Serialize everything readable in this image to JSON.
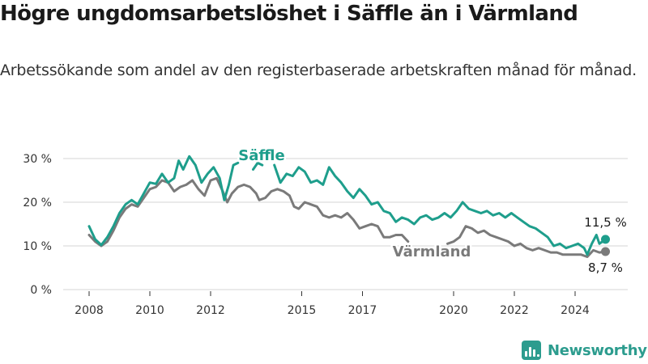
{
  "title": "Högre ungdomsarbetslöshet i Säffle än i Värmland",
  "subtitle": "Arbetssökande som andel av den registerbaserade arbetskraften månad för månad.",
  "brand": {
    "name": "Newsworthy"
  },
  "colors": {
    "saffle": "#1e9e8c",
    "varmland": "#7a7a7a",
    "grid": "#d4d4d4",
    "text": "#333333"
  },
  "chart_data": {
    "type": "line",
    "ylim": [
      0,
      30
    ],
    "y_ticks": [
      0,
      10,
      20,
      30
    ],
    "y_tick_labels": [
      "0 %",
      "10 %",
      "20 %",
      "30 %"
    ],
    "x_ticks": [
      2008,
      2010,
      2012,
      2015,
      2017,
      2020,
      2022,
      2024
    ],
    "x_tick_labels": [
      "2008",
      "2010",
      "2012",
      "2015",
      "2017",
      "2020",
      "2022",
      "2024"
    ],
    "grid": true,
    "series": [
      {
        "name": "Säffle",
        "end_label": "11,5 %",
        "points": [
          [
            2008.0,
            14.5
          ],
          [
            2008.2,
            11.5
          ],
          [
            2008.4,
            10.2
          ],
          [
            2008.6,
            12.0
          ],
          [
            2008.8,
            14.5
          ],
          [
            2009.0,
            17.5
          ],
          [
            2009.2,
            19.5
          ],
          [
            2009.4,
            20.5
          ],
          [
            2009.6,
            19.5
          ],
          [
            2009.8,
            22.0
          ],
          [
            2010.0,
            24.5
          ],
          [
            2010.2,
            24.2
          ],
          [
            2010.4,
            26.5
          ],
          [
            2010.6,
            24.5
          ],
          [
            2010.8,
            25.5
          ],
          [
            2010.95,
            29.5
          ],
          [
            2011.1,
            27.5
          ],
          [
            2011.3,
            30.5
          ],
          [
            2011.5,
            28.5
          ],
          [
            2011.7,
            24.5
          ],
          [
            2011.9,
            26.5
          ],
          [
            2012.1,
            28.0
          ],
          [
            2012.3,
            25.5
          ],
          [
            2012.45,
            20.5
          ],
          [
            2012.6,
            24.0
          ],
          [
            2012.75,
            28.5
          ],
          [
            2012.9,
            29.0
          ],
          [
            null,
            null
          ],
          [
            2013.4,
            27.5
          ],
          [
            2013.55,
            29.0
          ],
          [
            2013.7,
            28.5
          ],
          [
            null,
            null
          ],
          [
            2014.1,
            28.5
          ],
          [
            2014.3,
            24.5
          ],
          [
            2014.5,
            26.5
          ],
          [
            2014.7,
            26.0
          ],
          [
            2014.9,
            28.0
          ],
          [
            2015.1,
            27.0
          ],
          [
            2015.3,
            24.5
          ],
          [
            2015.5,
            25.0
          ],
          [
            2015.7,
            24.0
          ],
          [
            2015.9,
            28.0
          ],
          [
            2016.1,
            26.0
          ],
          [
            2016.3,
            24.5
          ],
          [
            2016.5,
            22.5
          ],
          [
            2016.7,
            21.0
          ],
          [
            2016.9,
            23.0
          ],
          [
            2017.1,
            21.5
          ],
          [
            2017.3,
            19.5
          ],
          [
            2017.5,
            20.0
          ],
          [
            2017.7,
            18.0
          ],
          [
            2017.9,
            17.5
          ],
          [
            2018.1,
            15.5
          ],
          [
            2018.3,
            16.5
          ],
          [
            2018.5,
            16.0
          ],
          [
            2018.7,
            15.0
          ],
          [
            2018.9,
            16.5
          ],
          [
            2019.1,
            17.0
          ],
          [
            2019.3,
            16.0
          ],
          [
            2019.5,
            16.5
          ],
          [
            2019.7,
            17.5
          ],
          [
            2019.9,
            16.5
          ],
          [
            2020.1,
            18.0
          ],
          [
            2020.3,
            20.0
          ],
          [
            2020.5,
            18.5
          ],
          [
            2020.7,
            18.0
          ],
          [
            2020.9,
            17.5
          ],
          [
            2021.1,
            18.0
          ],
          [
            2021.3,
            17.0
          ],
          [
            2021.5,
            17.5
          ],
          [
            2021.7,
            16.5
          ],
          [
            2021.9,
            17.5
          ],
          [
            2022.1,
            16.5
          ],
          [
            2022.3,
            15.5
          ],
          [
            2022.5,
            14.5
          ],
          [
            2022.7,
            14.0
          ],
          [
            2022.9,
            13.0
          ],
          [
            2023.1,
            12.0
          ],
          [
            2023.3,
            10.0
          ],
          [
            2023.5,
            10.5
          ],
          [
            2023.7,
            9.5
          ],
          [
            2023.9,
            10.0
          ],
          [
            2024.1,
            10.5
          ],
          [
            2024.3,
            9.5
          ],
          [
            2024.4,
            8.0
          ],
          [
            2024.55,
            10.5
          ],
          [
            2024.7,
            12.5
          ],
          [
            2024.8,
            10.5
          ],
          [
            2024.9,
            11.0
          ],
          [
            2025.0,
            11.5
          ]
        ]
      },
      {
        "name": "Värmland",
        "end_label": "8,7 %",
        "points": [
          [
            2008.0,
            12.5
          ],
          [
            2008.2,
            11.0
          ],
          [
            2008.4,
            10.0
          ],
          [
            2008.6,
            11.0
          ],
          [
            2008.8,
            13.5
          ],
          [
            2009.0,
            16.5
          ],
          [
            2009.2,
            18.5
          ],
          [
            2009.4,
            19.5
          ],
          [
            2009.6,
            19.0
          ],
          [
            2009.8,
            21.0
          ],
          [
            2010.0,
            23.0
          ],
          [
            2010.2,
            23.5
          ],
          [
            2010.4,
            25.0
          ],
          [
            2010.6,
            24.5
          ],
          [
            2010.8,
            22.5
          ],
          [
            2011.0,
            23.5
          ],
          [
            2011.2,
            24.0
          ],
          [
            2011.4,
            25.0
          ],
          [
            2011.6,
            23.0
          ],
          [
            2011.8,
            21.5
          ],
          [
            2012.0,
            25.0
          ],
          [
            2012.2,
            25.5
          ],
          [
            2012.4,
            22.5
          ],
          [
            2012.55,
            20.0
          ],
          [
            2012.7,
            22.0
          ],
          [
            2012.9,
            23.5
          ],
          [
            2013.1,
            24.0
          ],
          [
            2013.3,
            23.5
          ],
          [
            2013.5,
            22.0
          ],
          [
            2013.6,
            20.5
          ],
          [
            2013.8,
            21.0
          ],
          [
            2014.0,
            22.5
          ],
          [
            2014.2,
            23.0
          ],
          [
            2014.4,
            22.5
          ],
          [
            2014.6,
            21.5
          ],
          [
            2014.75,
            19.0
          ],
          [
            2014.9,
            18.5
          ],
          [
            2015.1,
            20.0
          ],
          [
            2015.3,
            19.5
          ],
          [
            2015.5,
            19.0
          ],
          [
            2015.7,
            17.0
          ],
          [
            2015.9,
            16.5
          ],
          [
            2016.1,
            17.0
          ],
          [
            2016.3,
            16.5
          ],
          [
            2016.5,
            17.5
          ],
          [
            2016.7,
            16.0
          ],
          [
            2016.9,
            14.0
          ],
          [
            2017.1,
            14.5
          ],
          [
            2017.3,
            15.0
          ],
          [
            2017.5,
            14.5
          ],
          [
            2017.7,
            12.0
          ],
          [
            2017.9,
            12.0
          ],
          [
            2018.1,
            12.5
          ],
          [
            2018.3,
            12.5
          ],
          [
            2018.5,
            11.0
          ],
          [
            null,
            null
          ],
          [
            2019.8,
            10.5
          ],
          [
            2020.0,
            11.0
          ],
          [
            2020.2,
            12.0
          ],
          [
            2020.4,
            14.5
          ],
          [
            2020.6,
            14.0
          ],
          [
            2020.8,
            13.0
          ],
          [
            2021.0,
            13.5
          ],
          [
            2021.2,
            12.5
          ],
          [
            2021.4,
            12.0
          ],
          [
            2021.6,
            11.5
          ],
          [
            2021.8,
            11.0
          ],
          [
            2022.0,
            10.0
          ],
          [
            2022.2,
            10.5
          ],
          [
            2022.4,
            9.5
          ],
          [
            2022.6,
            9.0
          ],
          [
            2022.8,
            9.5
          ],
          [
            2023.0,
            9.0
          ],
          [
            2023.2,
            8.5
          ],
          [
            2023.4,
            8.5
          ],
          [
            2023.6,
            8.0
          ],
          [
            2023.8,
            8.0
          ],
          [
            2024.0,
            8.0
          ],
          [
            2024.2,
            8.0
          ],
          [
            2024.4,
            7.5
          ],
          [
            2024.6,
            9.0
          ],
          [
            2024.8,
            8.5
          ],
          [
            2025.0,
            8.7
          ]
        ]
      }
    ]
  }
}
